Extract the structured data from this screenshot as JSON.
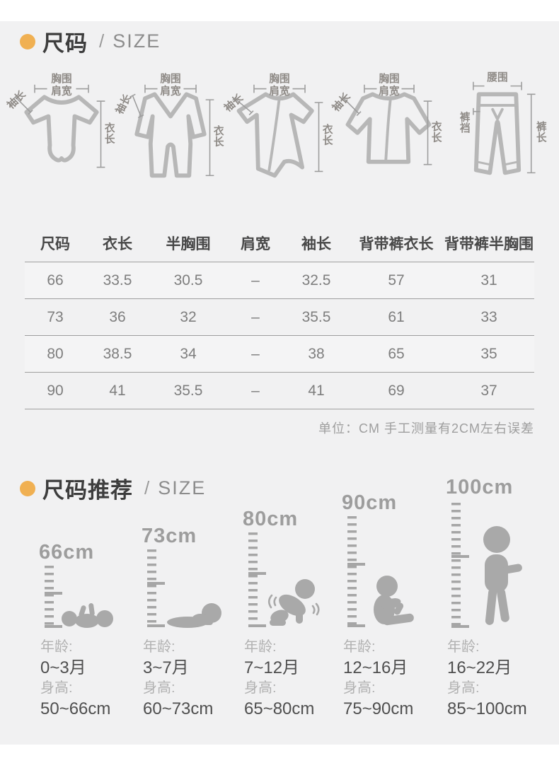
{
  "colors": {
    "accent": "#f0b052",
    "background": "#f1f1f2"
  },
  "size_section": {
    "title": "尺码",
    "divider": "/",
    "subtitle": "SIZE",
    "diagrams": [
      {
        "garment": "bodysuit",
        "chest": "胸围",
        "shoulder": "肩宽",
        "sleeve": "袖长",
        "length": "衣长"
      },
      {
        "garment": "romper",
        "chest": "胸围",
        "shoulder": "肩宽",
        "sleeve": "袖长",
        "length": "衣长"
      },
      {
        "garment": "gown",
        "chest": "胸围",
        "shoulder": "肩宽",
        "sleeve": "袖长",
        "length": "衣长"
      },
      {
        "garment": "jacket",
        "chest": "胸围",
        "shoulder": "肩宽",
        "sleeve": "袖长",
        "length": "衣长"
      },
      {
        "garment": "pants",
        "waist": "腰围",
        "rise": "裤裆",
        "length": "裤长"
      }
    ],
    "table": {
      "headers": [
        "尺码",
        "衣长",
        "半胸围",
        "肩宽",
        "袖长",
        "背带裤衣长",
        "背带裤半胸围"
      ],
      "rows": [
        [
          "66",
          "33.5",
          "30.5",
          "–",
          "32.5",
          "57",
          "31"
        ],
        [
          "73",
          "36",
          "32",
          "–",
          "35.5",
          "61",
          "33"
        ],
        [
          "80",
          "38.5",
          "34",
          "–",
          "38",
          "65",
          "35"
        ],
        [
          "90",
          "41",
          "35.5",
          "–",
          "41",
          "69",
          "37"
        ]
      ]
    },
    "note": "单位：CM 手工测量有2CM左右误差"
  },
  "recommend_section": {
    "title": "尺码推荐",
    "divider": "/",
    "subtitle": "SIZE",
    "columns": [
      {
        "size": "66cm",
        "icon": "baby-lying-back",
        "age_label": "年龄:",
        "age": "0~3月",
        "height_label": "身高:",
        "height": "50~66cm"
      },
      {
        "size": "73cm",
        "icon": "baby-on-tummy",
        "age_label": "年龄:",
        "age": "3~7月",
        "height_label": "身高:",
        "height": "60~73cm"
      },
      {
        "size": "80cm",
        "icon": "baby-crawling",
        "age_label": "年龄:",
        "age": "7~12月",
        "height_label": "身高:",
        "height": "65~80cm"
      },
      {
        "size": "90cm",
        "icon": "baby-sitting",
        "age_label": "年龄:",
        "age": "12~16月",
        "height_label": "身高:",
        "height": "75~90cm"
      },
      {
        "size": "100cm",
        "icon": "toddler-walking",
        "age_label": "年龄:",
        "age": "16~22月",
        "height_label": "身高:",
        "height": "85~100cm"
      }
    ]
  }
}
